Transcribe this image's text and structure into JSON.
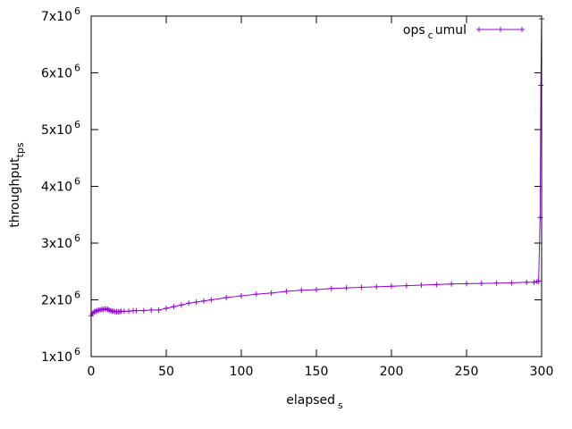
{
  "chart_data": {
    "type": "line",
    "title": "",
    "xlabel": "elapsed",
    "xlabel_sub": "s",
    "ylabel": "throughput",
    "ylabel_sub": "tps",
    "xlim": [
      0,
      300
    ],
    "ylim": [
      1000000,
      7000000
    ],
    "x_ticks": [
      0,
      50,
      100,
      150,
      200,
      250,
      300
    ],
    "x_tick_labels": [
      "0",
      "50",
      "100",
      "150",
      "200",
      "250",
      "300"
    ],
    "y_ticks": [
      1000000,
      2000000,
      3000000,
      4000000,
      5000000,
      6000000,
      7000000
    ],
    "y_tick_labels": [
      {
        "mantissa": "1x10",
        "exponent": "6"
      },
      {
        "mantissa": "2x10",
        "exponent": "6"
      },
      {
        "mantissa": "3x10",
        "exponent": "6"
      },
      {
        "mantissa": "4x10",
        "exponent": "6"
      },
      {
        "mantissa": "5x10",
        "exponent": "6"
      },
      {
        "mantissa": "6x10",
        "exponent": "6"
      },
      {
        "mantissa": "7x10",
        "exponent": "6"
      }
    ],
    "grid": false,
    "legend_position": "top-right",
    "series": [
      {
        "name": "ops",
        "name_sub": "c",
        "name_rest": "umul",
        "color": "#9400d3",
        "marker": "plus",
        "x": [
          0,
          1,
          2,
          3,
          4,
          5,
          6,
          7,
          8,
          9,
          10,
          11,
          12,
          13,
          14,
          15,
          16,
          17,
          18,
          19,
          20,
          22,
          25,
          28,
          30,
          35,
          40,
          45,
          50,
          55,
          60,
          65,
          70,
          75,
          80,
          90,
          100,
          110,
          120,
          130,
          140,
          150,
          160,
          170,
          180,
          190,
          200,
          210,
          220,
          230,
          240,
          250,
          260,
          270,
          280,
          290,
          295,
          297,
          298,
          299,
          299.5,
          300
        ],
        "y": [
          1720000,
          1760000,
          1790000,
          1800000,
          1810000,
          1820000,
          1820000,
          1830000,
          1830000,
          1840000,
          1840000,
          1830000,
          1820000,
          1810000,
          1800000,
          1800000,
          1790000,
          1790000,
          1790000,
          1790000,
          1800000,
          1800000,
          1800000,
          1810000,
          1810000,
          1810000,
          1820000,
          1820000,
          1850000,
          1880000,
          1910000,
          1940000,
          1960000,
          1980000,
          2000000,
          2040000,
          2070000,
          2100000,
          2120000,
          2150000,
          2170000,
          2180000,
          2200000,
          2210000,
          2220000,
          2230000,
          2240000,
          2250000,
          2260000,
          2270000,
          2280000,
          2285000,
          2290000,
          2295000,
          2300000,
          2310000,
          2310000,
          2320000,
          2330000,
          3450000,
          5780000,
          6950000
        ]
      }
    ]
  }
}
